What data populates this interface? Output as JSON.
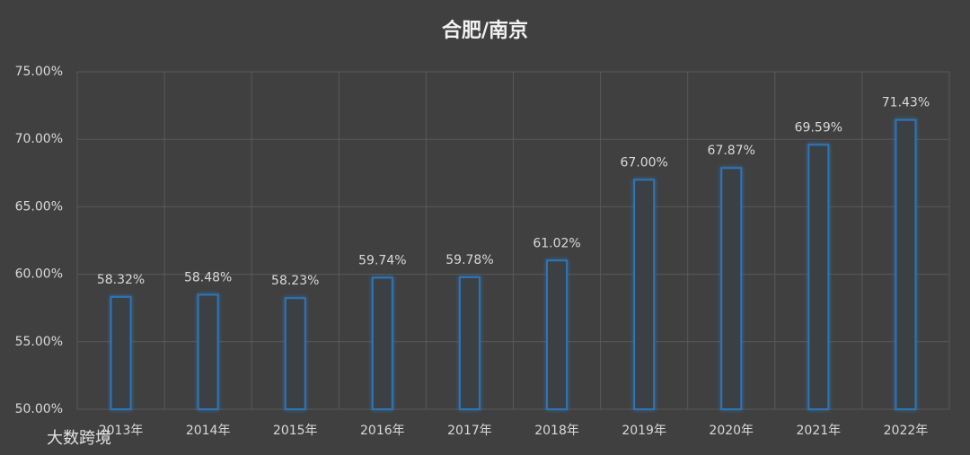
{
  "chart_data": {
    "type": "bar",
    "title": "合肥/南京",
    "categories": [
      "2013年",
      "2014年",
      "2015年",
      "2016年",
      "2017年",
      "2018年",
      "2019年",
      "2020年",
      "2021年",
      "2022年"
    ],
    "values": [
      58.32,
      58.48,
      58.23,
      59.74,
      59.78,
      61.02,
      67.0,
      67.87,
      69.59,
      71.43
    ],
    "value_labels": [
      "58.32%",
      "58.48%",
      "58.23%",
      "59.74%",
      "59.78%",
      "61.02%",
      "67.00%",
      "67.87%",
      "69.59%",
      "71.43%"
    ],
    "color": "#2e75b6",
    "ylim": [
      50,
      75
    ],
    "yticks": [
      {
        "value": 50,
        "label": "50.00%"
      },
      {
        "value": 55,
        "label": "55.00%"
      },
      {
        "value": 60,
        "label": "60.00%"
      },
      {
        "value": 65,
        "label": "65.00%"
      },
      {
        "value": 70,
        "label": "70.00%"
      },
      {
        "value": 75,
        "label": "75.00%"
      }
    ],
    "grid": true,
    "watermark": "大数跨境"
  }
}
